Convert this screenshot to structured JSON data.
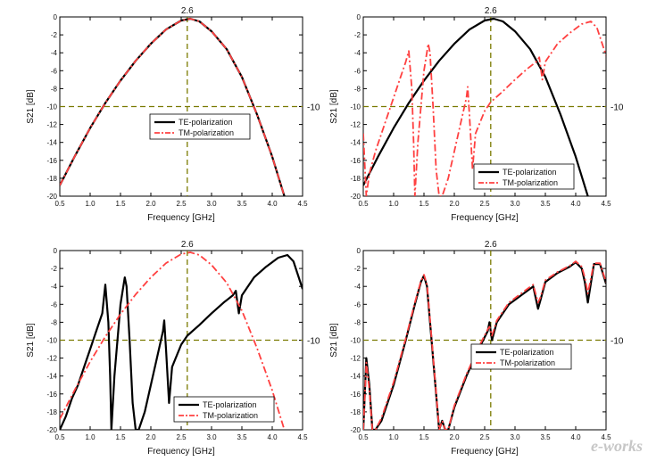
{
  "watermark": "e-works",
  "chart_data": [
    {
      "type": "line",
      "xlabel": "Frequency [GHz]",
      "ylabel": "S21 [dB]",
      "xlim": [
        0.5,
        4.5
      ],
      "ylim": [
        -20,
        0
      ],
      "xticks": [
        "0.5",
        "1.0",
        "1.5",
        "2.0",
        "2.5",
        "3.0",
        "3.5",
        "4.0",
        "4.5"
      ],
      "yticks": [
        "0",
        "-2",
        "-4",
        "-6",
        "-8",
        "-10",
        "-12",
        "-14",
        "-16",
        "-18",
        "-20"
      ],
      "ref_vline": {
        "x": 2.6,
        "label": "2.6"
      },
      "ref_hline": {
        "y": -10,
        "label": "-10"
      },
      "legend": "center-right",
      "series": [
        {
          "name": "TE-polarization",
          "color": "#000000",
          "style": "solid",
          "x": [
            0.5,
            0.75,
            1.0,
            1.25,
            1.5,
            1.75,
            2.0,
            2.25,
            2.5,
            2.65,
            2.8,
            3.0,
            3.25,
            3.5,
            3.75,
            4.0,
            4.1,
            4.2
          ],
          "y": [
            -18.8,
            -15.5,
            -12.4,
            -9.6,
            -7.1,
            -4.9,
            -3.0,
            -1.4,
            -0.4,
            -0.2,
            -0.5,
            -1.6,
            -3.6,
            -6.7,
            -10.9,
            -15.6,
            -17.8,
            -20
          ]
        },
        {
          "name": "TM-polarization",
          "color": "#ff4040",
          "style": "dashdot",
          "x": [
            0.5,
            0.75,
            1.0,
            1.25,
            1.5,
            1.75,
            2.0,
            2.25,
            2.5,
            2.65,
            2.8,
            3.0,
            3.25,
            3.5,
            3.75,
            4.0,
            4.1,
            4.2
          ],
          "y": [
            -18.8,
            -15.5,
            -12.4,
            -9.6,
            -7.1,
            -4.9,
            -3.0,
            -1.4,
            -0.4,
            -0.2,
            -0.5,
            -1.6,
            -3.6,
            -6.7,
            -10.9,
            -15.6,
            -17.8,
            -20
          ]
        }
      ]
    },
    {
      "type": "line",
      "xlabel": "Frequency [GHz]",
      "ylabel": "S21 [dB]",
      "xlim": [
        0.5,
        4.5
      ],
      "ylim": [
        -20,
        0
      ],
      "xticks": [
        "0.5",
        "1.0",
        "1.5",
        "2.0",
        "2.5",
        "3.0",
        "3.5",
        "4.0",
        "4.5"
      ],
      "yticks": [
        "0",
        "-2",
        "-4",
        "-6",
        "-8",
        "-10",
        "-12",
        "-14",
        "-16",
        "-18",
        "-20"
      ],
      "ref_vline": {
        "x": 2.6,
        "label": "2.6"
      },
      "ref_hline": {
        "y": -10,
        "label": "-10"
      },
      "legend": "bottom-right",
      "series": [
        {
          "name": "TE-polarization",
          "color": "#000000",
          "style": "solid",
          "x": [
            0.5,
            0.75,
            1.0,
            1.25,
            1.5,
            1.75,
            2.0,
            2.25,
            2.5,
            2.65,
            2.8,
            3.0,
            3.25,
            3.5,
            3.75,
            4.0,
            4.1,
            4.2
          ],
          "y": [
            -18.8,
            -15.5,
            -12.4,
            -9.6,
            -7.1,
            -4.9,
            -3.0,
            -1.4,
            -0.4,
            -0.2,
            -0.5,
            -1.6,
            -3.6,
            -6.7,
            -10.9,
            -15.6,
            -17.8,
            -20
          ]
        },
        {
          "name": "TM-polarization",
          "color": "#ff4040",
          "style": "dashdot",
          "x": [
            0.5,
            0.55,
            0.6,
            0.7,
            0.8,
            0.9,
            1.0,
            1.1,
            1.2,
            1.25,
            1.3,
            1.33,
            1.35,
            1.4,
            1.5,
            1.57,
            1.6,
            1.65,
            1.7,
            1.75,
            1.8,
            1.9,
            2.0,
            2.1,
            2.2,
            2.22,
            2.25,
            2.3,
            2.35,
            2.5,
            2.6,
            2.8,
            3.0,
            3.2,
            3.35,
            3.4,
            3.45,
            3.5,
            3.7,
            3.9,
            4.1,
            4.25,
            4.35,
            4.5
          ],
          "y": [
            -13.0,
            -20,
            -17.5,
            -15.0,
            -13.0,
            -11.0,
            -9.0,
            -7.0,
            -5.0,
            -3.8,
            -8.0,
            -14.0,
            -20,
            -14.0,
            -6.0,
            -3.0,
            -4.0,
            -10.0,
            -17.0,
            -20,
            -20,
            -18.0,
            -15.0,
            -12.0,
            -9.0,
            -7.8,
            -11.0,
            -17.0,
            -13.0,
            -10.5,
            -9.5,
            -8.3,
            -7.0,
            -5.8,
            -5.0,
            -4.5,
            -7.0,
            -5.0,
            -3.0,
            -1.8,
            -0.8,
            -0.5,
            -1.2,
            -4.3
          ]
        }
      ]
    },
    {
      "type": "line",
      "xlabel": "Frequency [GHz]",
      "ylabel": "S21 [dB]",
      "xlim": [
        0.5,
        4.5
      ],
      "ylim": [
        -20,
        0
      ],
      "xticks": [
        "0.5",
        "1.0",
        "1.5",
        "2.0",
        "2.5",
        "3.0",
        "3.5",
        "4.0",
        "4.5"
      ],
      "yticks": [
        "0",
        "-2",
        "-4",
        "-6",
        "-8",
        "-10",
        "-12",
        "-14",
        "-16",
        "-18",
        "-20"
      ],
      "ref_vline": {
        "x": 2.6,
        "label": "2.6"
      },
      "ref_hline": {
        "y": -10,
        "label": "-10"
      },
      "legend": "bottom-right",
      "series": [
        {
          "name": "TE-polarization",
          "color": "#000000",
          "style": "solid",
          "x": [
            0.5,
            0.6,
            0.7,
            0.8,
            0.9,
            1.0,
            1.1,
            1.2,
            1.25,
            1.3,
            1.33,
            1.35,
            1.4,
            1.5,
            1.57,
            1.6,
            1.65,
            1.7,
            1.75,
            1.8,
            1.9,
            2.0,
            2.1,
            2.2,
            2.22,
            2.25,
            2.3,
            2.35,
            2.5,
            2.6,
            2.8,
            3.0,
            3.2,
            3.35,
            3.4,
            3.45,
            3.5,
            3.7,
            3.9,
            4.1,
            4.25,
            4.35,
            4.5
          ],
          "y": [
            -20,
            -18.5,
            -16.5,
            -15.0,
            -13.0,
            -11.0,
            -9.0,
            -7.0,
            -3.8,
            -8.0,
            -14.0,
            -20,
            -14.0,
            -6.0,
            -3.0,
            -4.0,
            -10.0,
            -17.0,
            -20,
            -20,
            -18.0,
            -15.0,
            -12.0,
            -9.0,
            -7.8,
            -11.0,
            -17.0,
            -13.0,
            -10.5,
            -9.5,
            -8.3,
            -7.0,
            -5.8,
            -5.0,
            -4.5,
            -7.0,
            -5.0,
            -3.0,
            -1.8,
            -0.8,
            -0.5,
            -1.2,
            -4.3
          ]
        },
        {
          "name": "TM-polarization",
          "color": "#ff4040",
          "style": "dashdot",
          "x": [
            0.5,
            0.75,
            1.0,
            1.25,
            1.5,
            1.75,
            2.0,
            2.25,
            2.5,
            2.65,
            2.8,
            3.0,
            3.25,
            3.5,
            3.75,
            4.0,
            4.1,
            4.2
          ],
          "y": [
            -18.8,
            -15.5,
            -12.4,
            -9.6,
            -7.1,
            -4.9,
            -3.0,
            -1.4,
            -0.4,
            -0.2,
            -0.5,
            -1.6,
            -3.6,
            -6.7,
            -10.9,
            -15.6,
            -17.8,
            -20
          ]
        }
      ]
    },
    {
      "type": "line",
      "xlabel": "Frequency [GHz]",
      "ylabel": "S21 [dB]",
      "xlim": [
        0.5,
        4.5
      ],
      "ylim": [
        -20,
        0
      ],
      "xticks": [
        "0.5",
        "1.0",
        "1.5",
        "2.0",
        "2.5",
        "3.0",
        "3.5",
        "4.0",
        "4.5"
      ],
      "yticks": [
        "0",
        "-2",
        "-4",
        "-6",
        "-8",
        "-10",
        "-12",
        "-14",
        "-16",
        "-18",
        "-20"
      ],
      "ref_vline": {
        "x": 2.6,
        "label": "2.6"
      },
      "ref_hline": {
        "y": -10,
        "label": "-10"
      },
      "legend": "center-right",
      "series": [
        {
          "name": "TE-polarization",
          "color": "#000000",
          "style": "solid",
          "x": [
            0.5,
            0.55,
            0.6,
            0.65,
            0.7,
            0.8,
            1.0,
            1.2,
            1.35,
            1.45,
            1.5,
            1.55,
            1.6,
            1.65,
            1.7,
            1.75,
            1.8,
            1.85,
            1.9,
            2.0,
            2.2,
            2.4,
            2.55,
            2.58,
            2.62,
            2.7,
            2.9,
            3.1,
            3.3,
            3.38,
            3.42,
            3.5,
            3.7,
            3.9,
            4.0,
            4.1,
            4.15,
            4.2,
            4.3,
            4.4,
            4.5
          ],
          "y": [
            -20,
            -12.0,
            -15.0,
            -20,
            -20,
            -19.0,
            -15.0,
            -10.0,
            -6.0,
            -3.5,
            -2.8,
            -4.0,
            -8.0,
            -12.0,
            -16.0,
            -20,
            -19.0,
            -20,
            -20,
            -17.5,
            -14.0,
            -11.0,
            -9.0,
            -8.0,
            -10.0,
            -8.0,
            -6.0,
            -5.0,
            -4.0,
            -6.5,
            -5.5,
            -3.5,
            -2.5,
            -1.8,
            -1.3,
            -2.0,
            -3.5,
            -5.8,
            -1.5,
            -1.5,
            -3.7
          ]
        },
        {
          "name": "TM-polarization",
          "color": "#ff4040",
          "style": "dashdot",
          "x": [
            0.5,
            0.55,
            0.6,
            0.65,
            0.7,
            0.8,
            1.0,
            1.2,
            1.35,
            1.45,
            1.5,
            1.55,
            1.6,
            1.65,
            1.7,
            1.75,
            1.8,
            1.85,
            1.9,
            2.0,
            2.2,
            2.4,
            2.55,
            2.58,
            2.62,
            2.7,
            2.9,
            3.1,
            3.3,
            3.38,
            3.42,
            3.5,
            3.7,
            3.9,
            4.0,
            4.1,
            4.15,
            4.2,
            4.3,
            4.4,
            4.5
          ],
          "y": [
            -20,
            -12.5,
            -15.5,
            -20,
            -20,
            -18.7,
            -14.7,
            -9.8,
            -5.8,
            -3.4,
            -2.7,
            -3.8,
            -7.7,
            -11.8,
            -15.8,
            -20,
            -19.0,
            -20,
            -20,
            -17.3,
            -13.8,
            -10.8,
            -8.8,
            -8.5,
            -9.5,
            -7.8,
            -5.8,
            -4.8,
            -3.8,
            -5.8,
            -5.2,
            -3.3,
            -2.4,
            -1.7,
            -1.2,
            -1.8,
            -3.0,
            -4.8,
            -1.4,
            -1.4,
            -3.5
          ]
        }
      ]
    }
  ]
}
